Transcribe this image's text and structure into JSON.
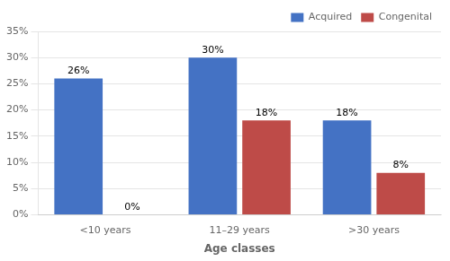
{
  "chart_data": {
    "type": "bar",
    "xlabel": "Age classes",
    "categories": [
      "<10 years",
      "11–29 years",
      ">30 years"
    ],
    "series": [
      {
        "name": "Acquired",
        "color": "#4472C4",
        "values": [
          26,
          30,
          18
        ],
        "value_labels": [
          "26%",
          "30%",
          "18%"
        ]
      },
      {
        "name": "Congenital",
        "color": "#BE4B48",
        "values": [
          0,
          18,
          8
        ],
        "value_labels": [
          "0%",
          "18%",
          "8%"
        ]
      }
    ],
    "ylim": [
      0,
      35
    ],
    "yticks": [
      {
        "value": 0,
        "label": "0%"
      },
      {
        "value": 5,
        "label": "5%"
      },
      {
        "value": 10,
        "label": "10%"
      },
      {
        "value": 15,
        "label": "15%"
      },
      {
        "value": 20,
        "label": "20%"
      },
      {
        "value": 25,
        "label": "25%"
      },
      {
        "value": 30,
        "label": "30%"
      },
      {
        "value": 35,
        "label": "35%"
      }
    ],
    "grid": true,
    "legend": "upper right",
    "data_labels": true
  }
}
